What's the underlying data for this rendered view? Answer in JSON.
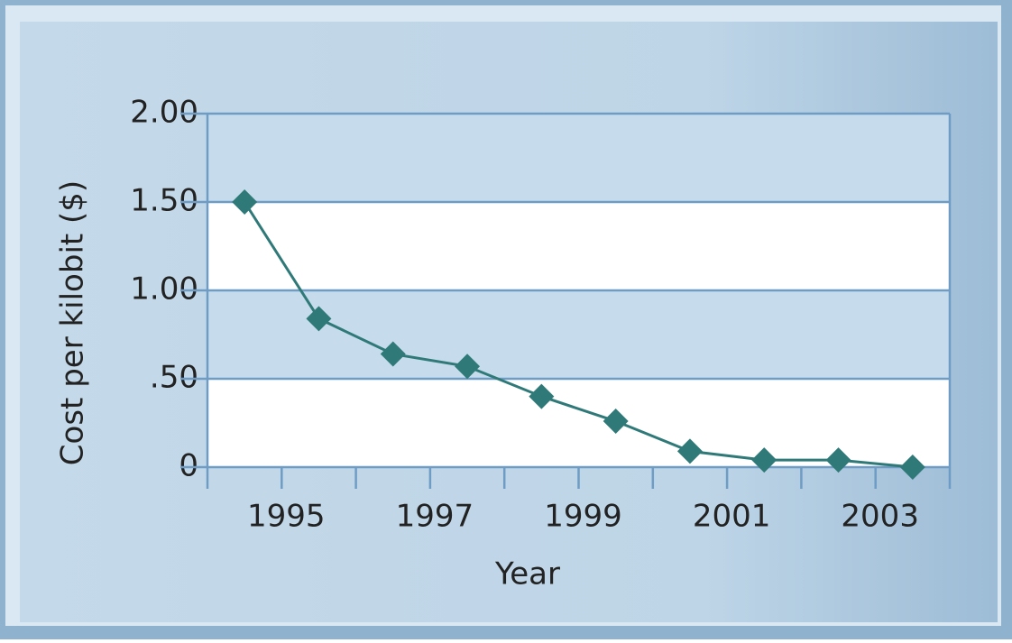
{
  "chart_data": {
    "type": "line",
    "x_label": "Year",
    "y_label": "Cost per kilobit ($)",
    "x": [
      1994.5,
      1995.5,
      1996.5,
      1997.5,
      1998.5,
      1999.5,
      2000.5,
      2001.5,
      2002.5,
      2003.5
    ],
    "values": [
      1.5,
      0.84,
      0.64,
      0.57,
      0.4,
      0.26,
      0.09,
      0.04,
      0.04,
      0
    ],
    "color": "#2f7a78",
    "xlim": [
      1994,
      2004
    ],
    "xticks": [
      1995,
      1997,
      1999,
      2001,
      2003
    ],
    "xminorticks": [
      1994,
      1996,
      1998,
      2000,
      2002,
      2004
    ],
    "ylim": [
      0,
      2
    ],
    "yticks": [
      0,
      {
        "value": 0.5,
        "label": ".50"
      },
      {
        "value": 1,
        "label": "1.00"
      },
      {
        "value": 1.5,
        "label": "1.50"
      },
      {
        "value": 2,
        "label": "2.00"
      }
    ],
    "grid": true
  }
}
